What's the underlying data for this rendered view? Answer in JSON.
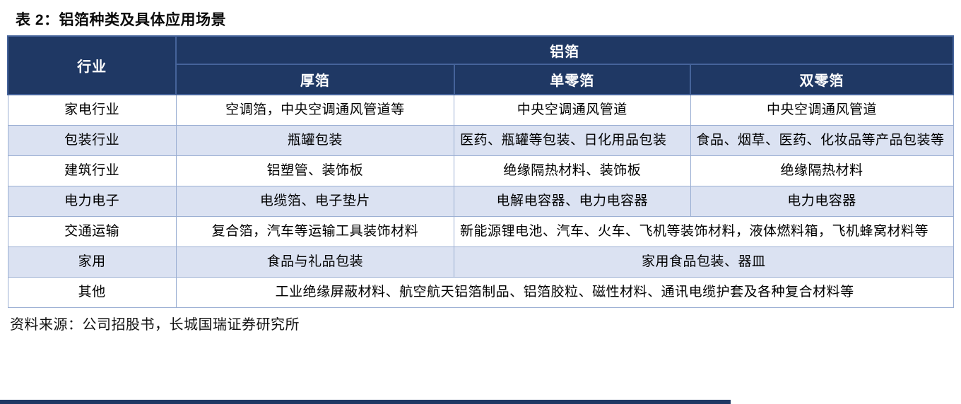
{
  "title": "表 2：铝箔种类及具体应用场景",
  "source_note": "资料来源：公司招股书，长城国瑞证券研究所",
  "colors": {
    "header_bg": "#1F3864",
    "header_divider": "#45639A",
    "band_row_bg": "#DBE2F2",
    "body_border": "#9BAFD3",
    "bottom_rule": "#1F3864"
  },
  "table": {
    "header": {
      "industry_label": "行业",
      "group_label": "铝箔",
      "sub_labels": [
        "厚箔",
        "单零箔",
        "双零箔"
      ]
    },
    "rows": [
      {
        "industry": "家电行业",
        "cells": [
          {
            "text": "空调箔，中央空调通风管道等",
            "span": 1,
            "align": "center"
          },
          {
            "text": "中央空调通风管道",
            "span": 1,
            "align": "center"
          },
          {
            "text": "中央空调通风管道",
            "span": 1,
            "align": "center"
          }
        ]
      },
      {
        "industry": "包装行业",
        "cells": [
          {
            "text": "瓶罐包装",
            "span": 1,
            "align": "center"
          },
          {
            "text": "医药、瓶罐等包装、日化用品包装",
            "span": 1,
            "align": "left"
          },
          {
            "text": "食品、烟草、医药、化妆品等产品包装等",
            "span": 1,
            "align": "left"
          }
        ]
      },
      {
        "industry": "建筑行业",
        "cells": [
          {
            "text": "铝塑管、装饰板",
            "span": 1,
            "align": "center"
          },
          {
            "text": "绝缘隔热材料、装饰板",
            "span": 1,
            "align": "center"
          },
          {
            "text": "绝缘隔热材料",
            "span": 1,
            "align": "center"
          }
        ]
      },
      {
        "industry": "电力电子",
        "cells": [
          {
            "text": "电缆箔、电子垫片",
            "span": 1,
            "align": "center"
          },
          {
            "text": "电解电容器、电力电容器",
            "span": 1,
            "align": "center"
          },
          {
            "text": "电力电容器",
            "span": 1,
            "align": "center"
          }
        ]
      },
      {
        "industry": "交通运输",
        "cells": [
          {
            "text": "复合箔，汽车等运输工具装饰材料",
            "span": 1,
            "align": "center"
          },
          {
            "text": "新能源锂电池、汽车、火车、飞机等装饰材料，液体燃料箱，飞机蜂窝材料等",
            "span": 2,
            "align": "left"
          }
        ]
      },
      {
        "industry": "家用",
        "cells": [
          {
            "text": "食品与礼品包装",
            "span": 1,
            "align": "center"
          },
          {
            "text": "家用食品包装、器皿",
            "span": 2,
            "align": "center"
          }
        ]
      },
      {
        "industry": "其他",
        "cells": [
          {
            "text": "工业绝缘屏蔽材料、航空航天铝箔制品、铝箔胶粒、磁性材料、通讯电缆护套及各种复合材料等",
            "span": 3,
            "align": "center"
          }
        ]
      }
    ]
  }
}
